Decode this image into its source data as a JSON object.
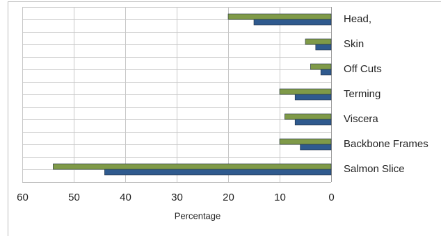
{
  "chart_data": {
    "type": "hbar",
    "x_label": "Percentage",
    "categories": [
      "Head,",
      "Skin",
      "Off  Cuts",
      "Terming",
      "Viscera",
      "Backbone Frames",
      "Salmon Slice"
    ],
    "series": [
      {
        "color": "#7f9a48",
        "values": [
          20,
          5,
          4,
          10,
          9,
          10,
          54
        ]
      },
      {
        "color": "#2f5a8e",
        "values": [
          15,
          3,
          2,
          7,
          7,
          6,
          44
        ]
      }
    ],
    "xlim": [
      0,
      60
    ],
    "x_reversed": true,
    "xticks": [
      0,
      10,
      20,
      30,
      40,
      50,
      60
    ],
    "grid": true
  }
}
